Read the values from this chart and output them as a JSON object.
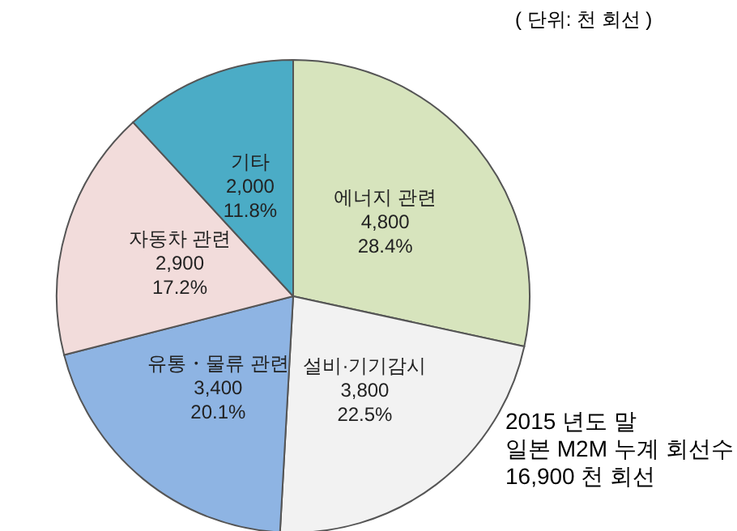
{
  "chart_data": {
    "type": "pie",
    "categories": [
      "에너지 관련",
      "설비·기기감시",
      "유통・물류 관련",
      "자동차 관련",
      "기타"
    ],
    "values": [
      4800,
      3800,
      3400,
      2900,
      2000
    ],
    "value_labels": [
      "4,800\n28.4%",
      "3,800\n22.5%",
      "3,400\n20.1%",
      "2,900\n17.2%",
      "2,000\n11.8%"
    ],
    "colors": [
      "#d7e4bd",
      "#f2f2f2",
      "#8eb4e3",
      "#f2dcdb",
      "#4bacc6"
    ],
    "annotations": [
      "( 단위: 천 회선 )",
      "2015 년도 말\n일본 M2M 누계 회선수\n16,900 천 회선"
    ]
  }
}
